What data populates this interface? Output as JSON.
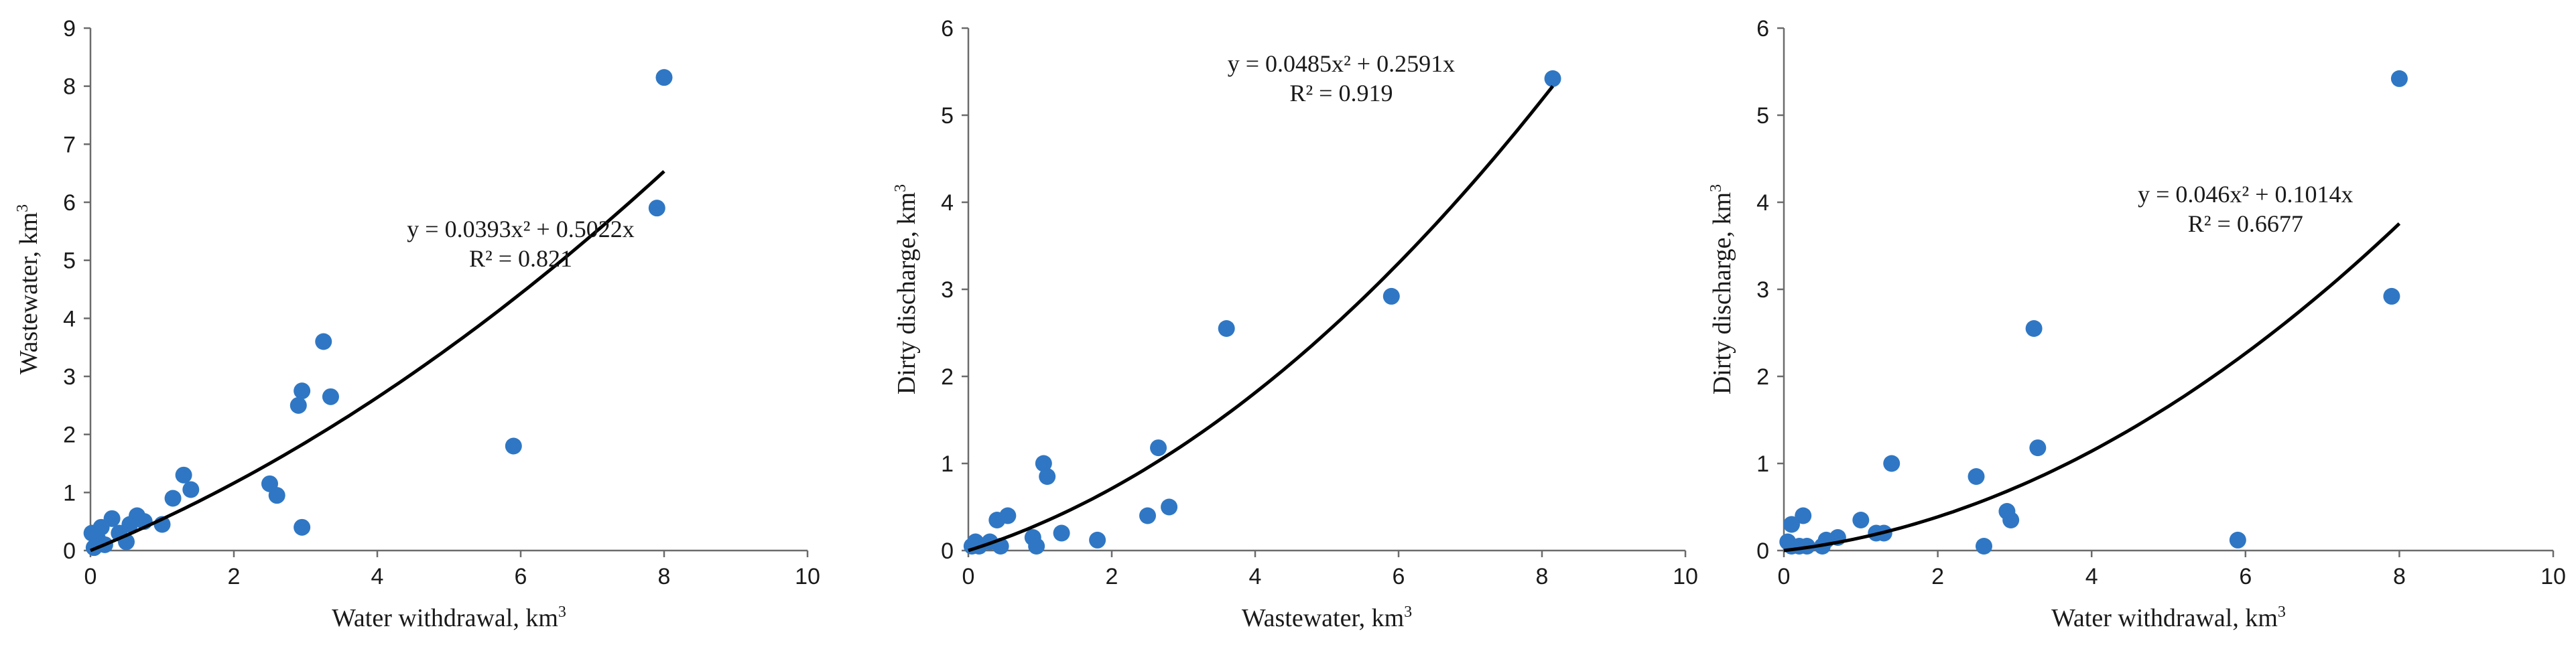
{
  "chart_data": [
    {
      "type": "scatter",
      "xlabel": "Water withdrawal,  km",
      "xlabel_sup": "3",
      "ylabel": "Wastewater, km",
      "ylabel_sup": "3",
      "xlim": [
        0,
        10
      ],
      "ylim": [
        0,
        9
      ],
      "xticks": [
        0,
        2,
        4,
        6,
        8,
        10
      ],
      "yticks": [
        0,
        1,
        2,
        3,
        4,
        5,
        6,
        7,
        8,
        9
      ],
      "grid": false,
      "trendline": {
        "a": 0.0393,
        "b": 0.5022,
        "x_start": 0,
        "x_end": 8
      },
      "equation": "y = 0.0393x² + 0.5022x",
      "r2": "R² = 0.821",
      "equation_anchor": [
        6,
        5.4
      ],
      "points": [
        [
          0.02,
          0.3
        ],
        [
          0.05,
          0.05
        ],
        [
          0.1,
          0.2
        ],
        [
          0.15,
          0.4
        ],
        [
          0.2,
          0.1
        ],
        [
          0.3,
          0.55
        ],
        [
          0.4,
          0.3
        ],
        [
          0.5,
          0.15
        ],
        [
          0.55,
          0.45
        ],
        [
          0.65,
          0.6
        ],
        [
          0.75,
          0.5
        ],
        [
          1.0,
          0.45
        ],
        [
          1.15,
          0.9
        ],
        [
          1.3,
          1.3
        ],
        [
          1.4,
          1.05
        ],
        [
          2.5,
          1.15
        ],
        [
          2.6,
          0.95
        ],
        [
          2.9,
          2.5
        ],
        [
          2.95,
          2.75
        ],
        [
          2.95,
          0.4
        ],
        [
          3.25,
          3.6
        ],
        [
          3.35,
          2.65
        ],
        [
          5.9,
          1.8
        ],
        [
          7.9,
          5.9
        ],
        [
          8.0,
          8.15
        ]
      ]
    },
    {
      "type": "scatter",
      "xlabel": "Wastewater, km",
      "xlabel_sup": "3",
      "ylabel": "Dirty  discharge, km",
      "ylabel_sup": "3",
      "xlim": [
        0,
        10
      ],
      "ylim": [
        0,
        6
      ],
      "xticks": [
        0,
        2,
        4,
        6,
        8,
        10
      ],
      "yticks": [
        0,
        1,
        2,
        3,
        4,
        5,
        6
      ],
      "grid": false,
      "trendline": {
        "a": 0.0485,
        "b": 0.2591,
        "x_start": 0,
        "x_end": 8.15
      },
      "equation": "y = 0.0485x² + 0.2591x",
      "r2": "R² = 0.919",
      "equation_anchor": [
        5.2,
        5.5
      ],
      "points": [
        [
          0.05,
          0.05
        ],
        [
          0.1,
          0.1
        ],
        [
          0.15,
          0.05
        ],
        [
          0.3,
          0.1
        ],
        [
          0.4,
          0.35
        ],
        [
          0.45,
          0.05
        ],
        [
          0.55,
          0.4
        ],
        [
          0.9,
          0.15
        ],
        [
          0.95,
          0.05
        ],
        [
          1.05,
          1.0
        ],
        [
          1.1,
          0.85
        ],
        [
          1.3,
          0.2
        ],
        [
          1.8,
          0.12
        ],
        [
          2.5,
          0.4
        ],
        [
          2.65,
          1.18
        ],
        [
          2.8,
          0.5
        ],
        [
          3.6,
          2.55
        ],
        [
          5.9,
          2.92
        ],
        [
          8.15,
          5.42
        ]
      ]
    },
    {
      "type": "scatter",
      "xlabel": "Water withdrawal,  km",
      "xlabel_sup": "3",
      "ylabel": "Dirty  discharge, km",
      "ylabel_sup": "3",
      "xlim": [
        0,
        10
      ],
      "ylim": [
        0,
        6
      ],
      "xticks": [
        0,
        2,
        4,
        6,
        8,
        10
      ],
      "yticks": [
        0,
        1,
        2,
        3,
        4,
        5,
        6
      ],
      "grid": false,
      "trendline": {
        "a": 0.046,
        "b": 0.1014,
        "x_start": 0,
        "x_end": 8
      },
      "equation": "y = 0.046x² + 0.1014x",
      "r2": "R² = 0.6677",
      "equation_anchor": [
        6,
        4.0
      ],
      "points": [
        [
          0.05,
          0.1
        ],
        [
          0.1,
          0.3
        ],
        [
          0.1,
          0.05
        ],
        [
          0.2,
          0.05
        ],
        [
          0.25,
          0.4
        ],
        [
          0.3,
          0.05
        ],
        [
          0.5,
          0.05
        ],
        [
          0.55,
          0.12
        ],
        [
          0.7,
          0.15
        ],
        [
          1.0,
          0.35
        ],
        [
          1.2,
          0.2
        ],
        [
          1.3,
          0.2
        ],
        [
          1.4,
          1.0
        ],
        [
          2.5,
          0.85
        ],
        [
          2.6,
          0.05
        ],
        [
          2.9,
          0.45
        ],
        [
          2.95,
          0.35
        ],
        [
          3.25,
          2.55
        ],
        [
          3.3,
          1.18
        ],
        [
          5.9,
          0.12
        ],
        [
          7.9,
          2.92
        ],
        [
          8.0,
          5.42
        ]
      ]
    }
  ]
}
